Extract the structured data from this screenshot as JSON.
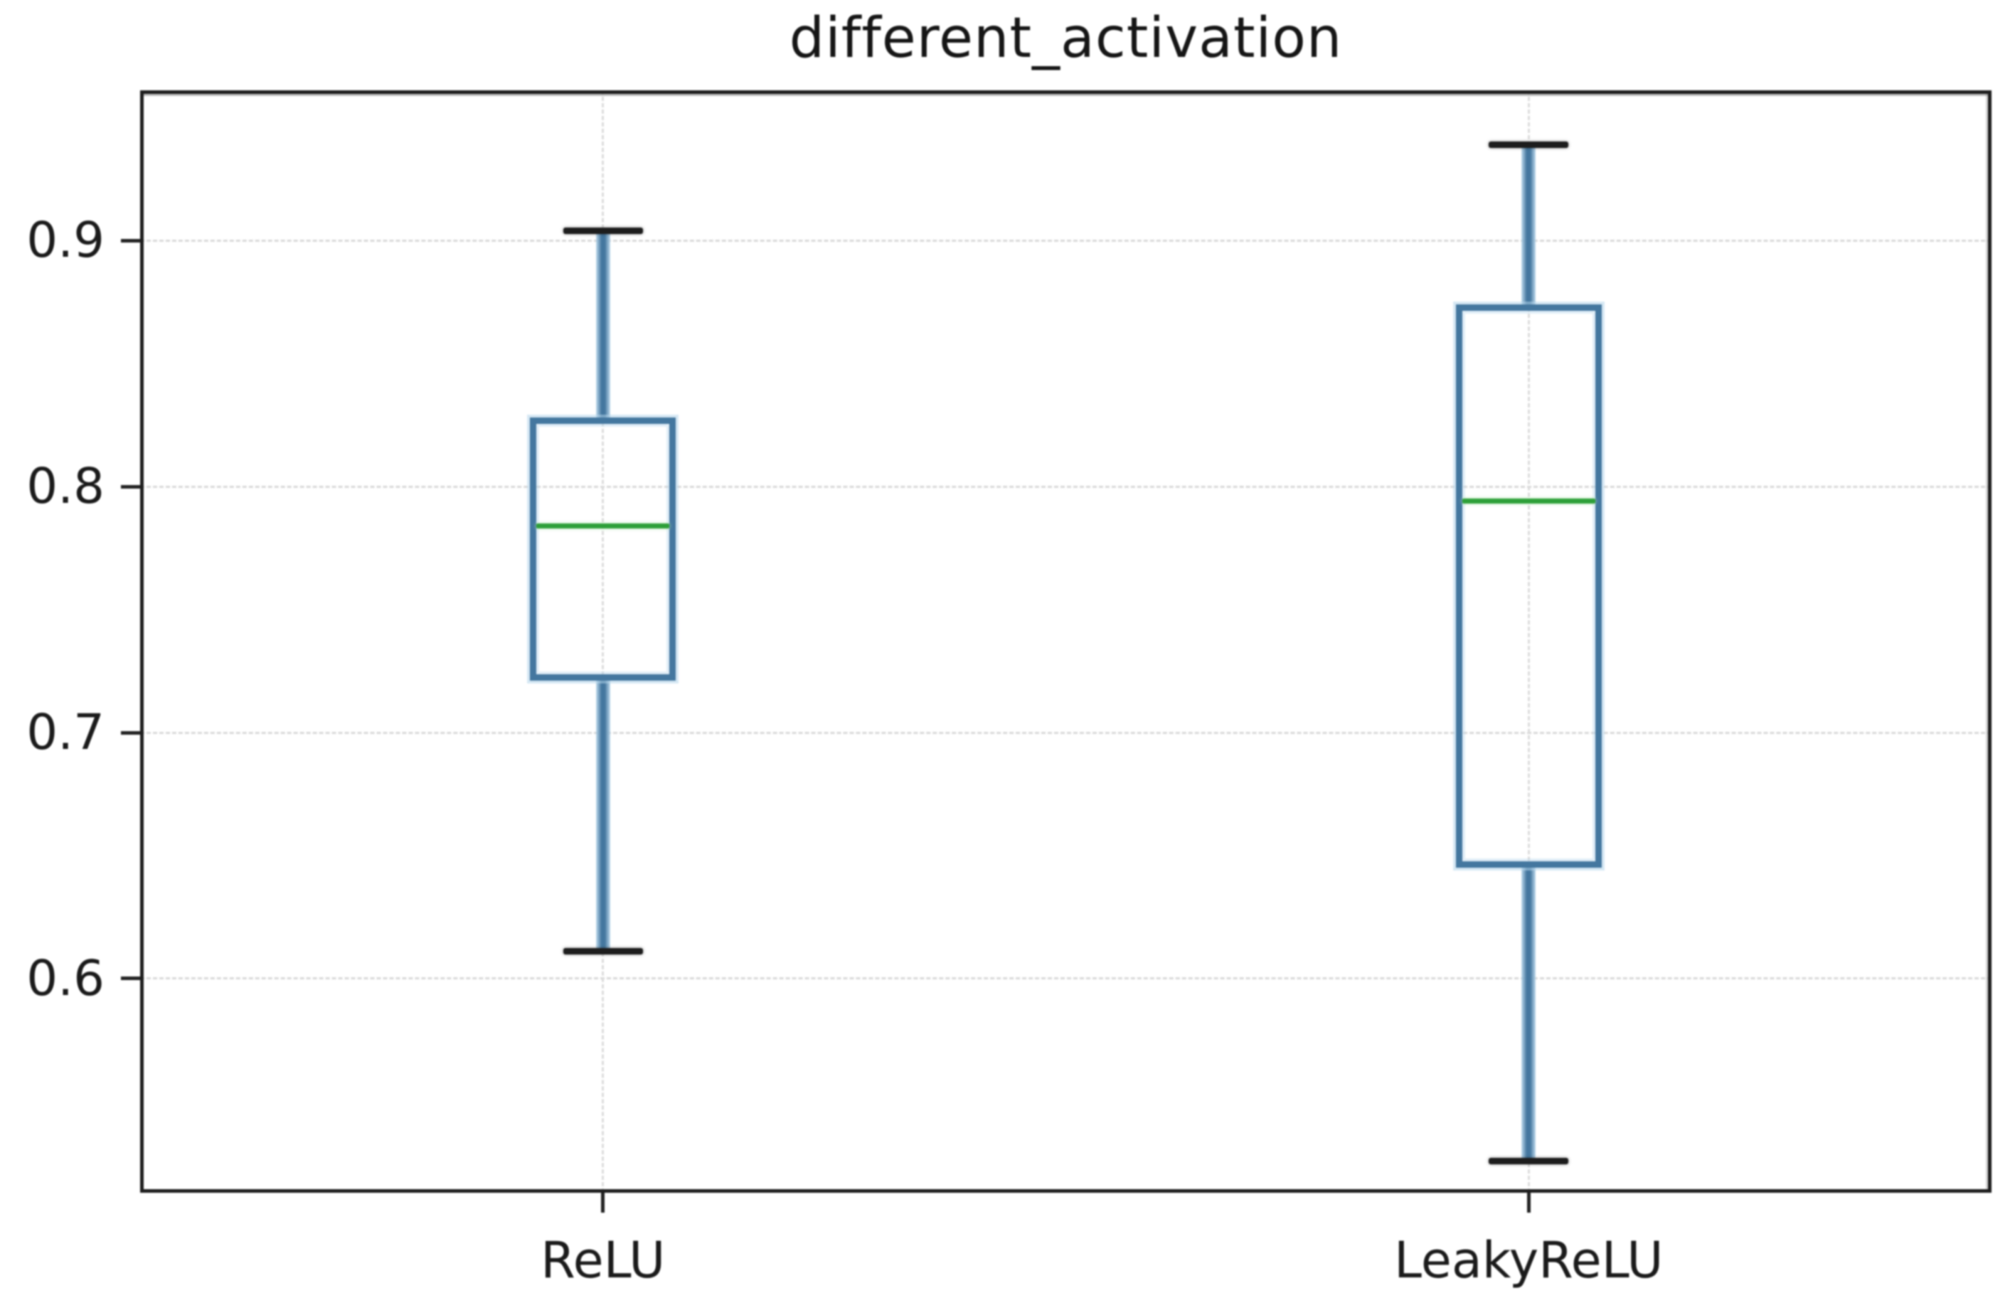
{
  "chart_data": {
    "type": "box",
    "title": "different_activation",
    "categories": [
      "ReLU",
      "LeakyReLU"
    ],
    "series": [
      {
        "name": "ReLU",
        "whislo": 0.611,
        "q1": 0.721,
        "med": 0.784,
        "q3": 0.828,
        "whishi": 0.904,
        "outliers": []
      },
      {
        "name": "LeakyReLU",
        "whislo": 0.526,
        "q1": 0.645,
        "med": 0.794,
        "q3": 0.874,
        "whishi": 0.939,
        "outliers": []
      }
    ],
    "positions": [
      1,
      2
    ],
    "xlim": [
      0.5,
      2.5
    ],
    "ylim": [
      0.513,
      0.961
    ],
    "yticks": [
      0.6,
      0.7,
      0.8,
      0.9
    ],
    "ytick_labels": [
      "0.6",
      "0.7",
      "0.8",
      "0.9"
    ],
    "xlabel": "",
    "ylabel": "",
    "grid": true,
    "grid_style": "dashed",
    "legend": "none",
    "colors": {
      "box_edge": "#44779f",
      "box_halo": "#b3d4ea",
      "whisker": "#44779f",
      "median": "#2fa03a",
      "median_glow": "#a9e0a9",
      "cap": "#1d1d1d",
      "grid": "#d9d9d9",
      "frame": "#1e1e1e",
      "text": "#1b1b1b",
      "background": "#ffffff"
    }
  }
}
